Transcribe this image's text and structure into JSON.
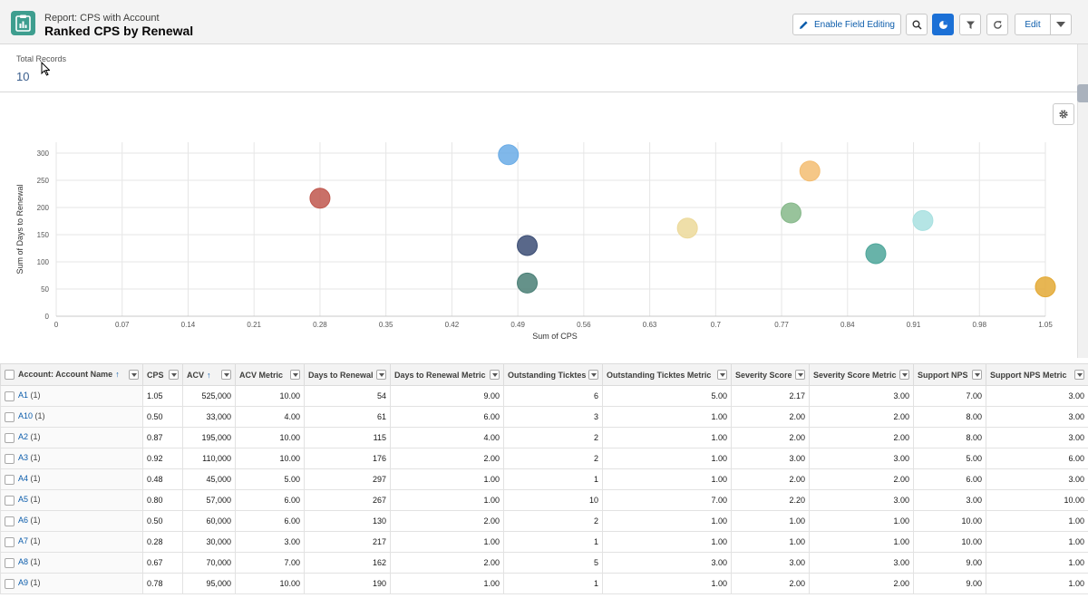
{
  "header": {
    "subtitle": "Report: CPS with Account",
    "title": "Ranked CPS by Renewal",
    "buttons": {
      "enable_field_editing": "Enable Field Editing",
      "edit": "Edit"
    },
    "icons": [
      "report-icon",
      "pencil-icon",
      "search-icon",
      "chart-icon",
      "filter-icon",
      "refresh-icon",
      "chevron-down-icon"
    ]
  },
  "summary": {
    "total_records_label": "Total Records",
    "total_records_value": "10"
  },
  "chart_data": {
    "type": "scatter",
    "xlabel": "Sum of CPS",
    "ylabel": "Sum of Days to Renewal",
    "xlim": [
      0,
      1.05
    ],
    "ylim": [
      0,
      300
    ],
    "x_ticks": [
      "0",
      "0.07",
      "0.14",
      "0.21",
      "0.28",
      "0.35",
      "0.42",
      "0.49",
      "0.56",
      "0.63",
      "0.7",
      "0.77",
      "0.84",
      "0.91",
      "0.98",
      "1.05"
    ],
    "y_ticks": [
      "0",
      "50",
      "100",
      "150",
      "200",
      "250",
      "300"
    ],
    "grid": true,
    "points": [
      {
        "x": 1.05,
        "y": 54,
        "color": "#e3a935"
      },
      {
        "x": 0.5,
        "y": 61,
        "color": "#4a7f76"
      },
      {
        "x": 0.87,
        "y": 115,
        "color": "#4ea69a"
      },
      {
        "x": 0.92,
        "y": 176,
        "color": "#a8e0e0"
      },
      {
        "x": 0.48,
        "y": 297,
        "color": "#6aace6"
      },
      {
        "x": 0.8,
        "y": 267,
        "color": "#f3bd72"
      },
      {
        "x": 0.5,
        "y": 130,
        "color": "#3c4e75"
      },
      {
        "x": 0.28,
        "y": 217,
        "color": "#c0574d"
      },
      {
        "x": 0.67,
        "y": 162,
        "color": "#ecd99a"
      },
      {
        "x": 0.78,
        "y": 190,
        "color": "#86b88a"
      }
    ]
  },
  "table": {
    "columns": [
      {
        "label": "Account: Account Name",
        "sort": "↑"
      },
      {
        "label": "CPS",
        "sort": ""
      },
      {
        "label": "ACV",
        "sort": "↑"
      },
      {
        "label": "ACV Metric",
        "sort": ""
      },
      {
        "label": "Days to Renewal",
        "sort": ""
      },
      {
        "label": "Days to Renewal Metric",
        "sort": ""
      },
      {
        "label": "Outstanding Ticktes",
        "sort": ""
      },
      {
        "label": "Outstanding Ticktes Metric",
        "sort": ""
      },
      {
        "label": "Severity Score",
        "sort": ""
      },
      {
        "label": "Severity Score Metric",
        "sort": ""
      },
      {
        "label": "Support NPS",
        "sort": ""
      },
      {
        "label": "Support NPS Metric",
        "sort": ""
      }
    ],
    "rows": [
      {
        "name": "A1",
        "count": "(1)",
        "cells": [
          "1.05",
          "525,000",
          "10.00",
          "54",
          "9.00",
          "6",
          "5.00",
          "2.17",
          "3.00",
          "7.00",
          "3.00"
        ]
      },
      {
        "name": "A10",
        "count": "(1)",
        "cells": [
          "0.50",
          "33,000",
          "4.00",
          "61",
          "6.00",
          "3",
          "1.00",
          "2.00",
          "2.00",
          "8.00",
          "3.00"
        ]
      },
      {
        "name": "A2",
        "count": "(1)",
        "cells": [
          "0.87",
          "195,000",
          "10.00",
          "115",
          "4.00",
          "2",
          "1.00",
          "2.00",
          "2.00",
          "8.00",
          "3.00"
        ]
      },
      {
        "name": "A3",
        "count": "(1)",
        "cells": [
          "0.92",
          "110,000",
          "10.00",
          "176",
          "2.00",
          "2",
          "1.00",
          "3.00",
          "3.00",
          "5.00",
          "6.00"
        ]
      },
      {
        "name": "A4",
        "count": "(1)",
        "cells": [
          "0.48",
          "45,000",
          "5.00",
          "297",
          "1.00",
          "1",
          "1.00",
          "2.00",
          "2.00",
          "6.00",
          "3.00"
        ]
      },
      {
        "name": "A5",
        "count": "(1)",
        "cells": [
          "0.80",
          "57,000",
          "6.00",
          "267",
          "1.00",
          "10",
          "7.00",
          "2.20",
          "3.00",
          "3.00",
          "10.00"
        ]
      },
      {
        "name": "A6",
        "count": "(1)",
        "cells": [
          "0.50",
          "60,000",
          "6.00",
          "130",
          "2.00",
          "2",
          "1.00",
          "1.00",
          "1.00",
          "10.00",
          "1.00"
        ]
      },
      {
        "name": "A7",
        "count": "(1)",
        "cells": [
          "0.28",
          "30,000",
          "3.00",
          "217",
          "1.00",
          "1",
          "1.00",
          "1.00",
          "1.00",
          "10.00",
          "1.00"
        ]
      },
      {
        "name": "A8",
        "count": "(1)",
        "cells": [
          "0.67",
          "70,000",
          "7.00",
          "162",
          "2.00",
          "5",
          "3.00",
          "3.00",
          "3.00",
          "9.00",
          "1.00"
        ]
      },
      {
        "name": "A9",
        "count": "(1)",
        "cells": [
          "0.78",
          "95,000",
          "10.00",
          "190",
          "1.00",
          "1",
          "1.00",
          "2.00",
          "2.00",
          "9.00",
          "1.00"
        ]
      }
    ]
  }
}
